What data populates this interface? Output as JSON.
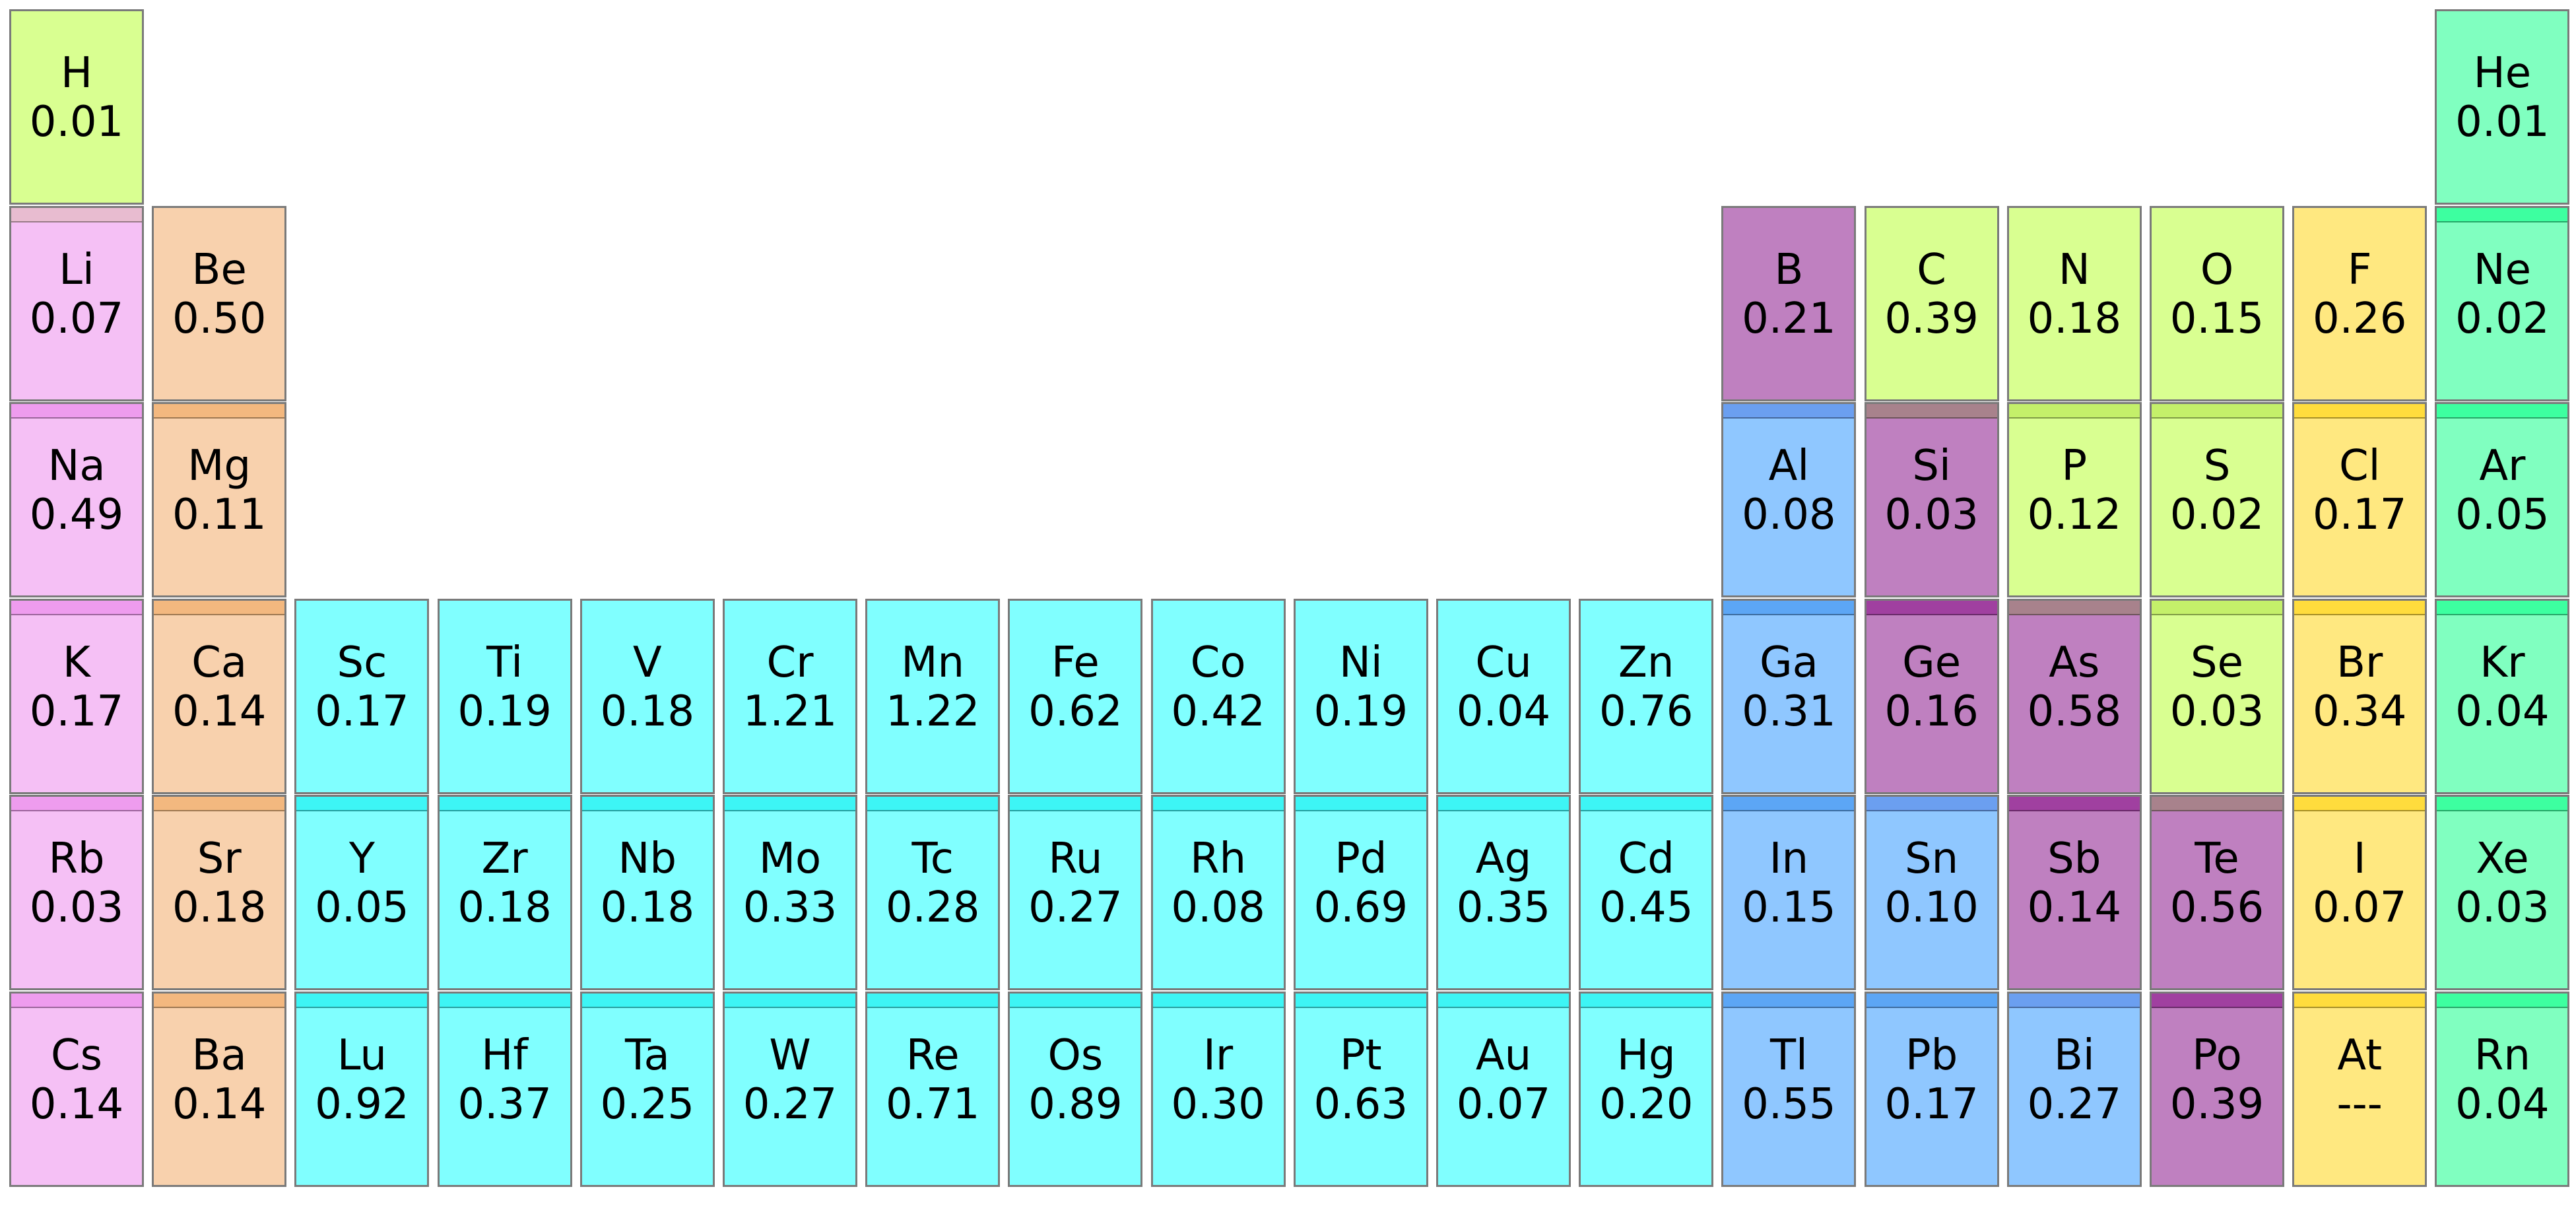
{
  "colors": {
    "alkali": "#f5c0f5",
    "alkaline_earth": "#f8d1ad",
    "transition": "#80ffff",
    "post_transition": "#8fc7ff",
    "metalloid": "#bf80c0",
    "nonmetal": "#d9ff91",
    "halogen": "#ffe880",
    "noble_gas": "#80ffc0"
  },
  "elements": [
    {
      "symbol": "H",
      "value": "0.01",
      "col": 1,
      "row": 1,
      "category": "nonmetal",
      "band": null
    },
    {
      "symbol": "He",
      "value": "0.01",
      "col": 18,
      "row": 1,
      "category": "noble_gas",
      "band": null
    },
    {
      "symbol": "Li",
      "value": "0.07",
      "col": 1,
      "row": 2,
      "category": "alkali",
      "band": "#e8bcd0"
    },
    {
      "symbol": "Be",
      "value": "0.50",
      "col": 2,
      "row": 2,
      "category": "alkaline_earth",
      "band": null
    },
    {
      "symbol": "B",
      "value": "0.21",
      "col": 13,
      "row": 2,
      "category": "metalloid",
      "band": null
    },
    {
      "symbol": "C",
      "value": "0.39",
      "col": 14,
      "row": 2,
      "category": "nonmetal",
      "band": null
    },
    {
      "symbol": "N",
      "value": "0.18",
      "col": 15,
      "row": 2,
      "category": "nonmetal",
      "band": null
    },
    {
      "symbol": "O",
      "value": "0.15",
      "col": 16,
      "row": 2,
      "category": "nonmetal",
      "band": null
    },
    {
      "symbol": "F",
      "value": "0.26",
      "col": 17,
      "row": 2,
      "category": "halogen",
      "band": null
    },
    {
      "symbol": "Ne",
      "value": "0.02",
      "col": 18,
      "row": 2,
      "category": "noble_gas",
      "band": "#3dffa0"
    },
    {
      "symbol": "Na",
      "value": "0.49",
      "col": 1,
      "row": 3,
      "category": "alkali",
      "band": "#ee9cee"
    },
    {
      "symbol": "Mg",
      "value": "0.11",
      "col": 2,
      "row": 3,
      "category": "alkaline_earth",
      "band": "#f3b87f"
    },
    {
      "symbol": "Al",
      "value": "0.08",
      "col": 13,
      "row": 3,
      "category": "post_transition",
      "band": "#6b9ff0"
    },
    {
      "symbol": "Si",
      "value": "0.03",
      "col": 14,
      "row": 3,
      "category": "metalloid",
      "band": "#a8828c"
    },
    {
      "symbol": "P",
      "value": "0.12",
      "col": 15,
      "row": 3,
      "category": "nonmetal",
      "band": "#c4f06a"
    },
    {
      "symbol": "S",
      "value": "0.02",
      "col": 16,
      "row": 3,
      "category": "nonmetal",
      "band": "#c4f06a"
    },
    {
      "symbol": "Cl",
      "value": "0.17",
      "col": 17,
      "row": 3,
      "category": "halogen",
      "band": "#ffdc3d"
    },
    {
      "symbol": "Ar",
      "value": "0.05",
      "col": 18,
      "row": 3,
      "category": "noble_gas",
      "band": "#3dffa0"
    },
    {
      "symbol": "K",
      "value": "0.17",
      "col": 1,
      "row": 4,
      "category": "alkali",
      "band": "#ee9cee"
    },
    {
      "symbol": "Ca",
      "value": "0.14",
      "col": 2,
      "row": 4,
      "category": "alkaline_earth",
      "band": "#f3b87f"
    },
    {
      "symbol": "Sc",
      "value": "0.17",
      "col": 3,
      "row": 4,
      "category": "transition",
      "band": null
    },
    {
      "symbol": "Ti",
      "value": "0.19",
      "col": 4,
      "row": 4,
      "category": "transition",
      "band": null
    },
    {
      "symbol": "V",
      "value": "0.18",
      "col": 5,
      "row": 4,
      "category": "transition",
      "band": null
    },
    {
      "symbol": "Cr",
      "value": "1.21",
      "col": 6,
      "row": 4,
      "category": "transition",
      "band": null
    },
    {
      "symbol": "Mn",
      "value": "1.22",
      "col": 7,
      "row": 4,
      "category": "transition",
      "band": null
    },
    {
      "symbol": "Fe",
      "value": "0.62",
      "col": 8,
      "row": 4,
      "category": "transition",
      "band": null
    },
    {
      "symbol": "Co",
      "value": "0.42",
      "col": 9,
      "row": 4,
      "category": "transition",
      "band": null
    },
    {
      "symbol": "Ni",
      "value": "0.19",
      "col": 10,
      "row": 4,
      "category": "transition",
      "band": null
    },
    {
      "symbol": "Cu",
      "value": "0.04",
      "col": 11,
      "row": 4,
      "category": "transition",
      "band": null
    },
    {
      "symbol": "Zn",
      "value": "0.76",
      "col": 12,
      "row": 4,
      "category": "transition",
      "band": null
    },
    {
      "symbol": "Ga",
      "value": "0.31",
      "col": 13,
      "row": 4,
      "category": "post_transition",
      "band": "#5ca6f5"
    },
    {
      "symbol": "Ge",
      "value": "0.16",
      "col": 14,
      "row": 4,
      "category": "metalloid",
      "band": "#a040a0"
    },
    {
      "symbol": "As",
      "value": "0.58",
      "col": 15,
      "row": 4,
      "category": "metalloid",
      "band": "#a8828c"
    },
    {
      "symbol": "Se",
      "value": "0.03",
      "col": 16,
      "row": 4,
      "category": "nonmetal",
      "band": "#c4f06a"
    },
    {
      "symbol": "Br",
      "value": "0.34",
      "col": 17,
      "row": 4,
      "category": "halogen",
      "band": "#ffdc3d"
    },
    {
      "symbol": "Kr",
      "value": "0.04",
      "col": 18,
      "row": 4,
      "category": "noble_gas",
      "band": "#3dffa0"
    },
    {
      "symbol": "Rb",
      "value": "0.03",
      "col": 1,
      "row": 5,
      "category": "alkali",
      "band": "#ee9cee"
    },
    {
      "symbol": "Sr",
      "value": "0.18",
      "col": 2,
      "row": 5,
      "category": "alkaline_earth",
      "band": "#f3b87f"
    },
    {
      "symbol": "Y",
      "value": "0.05",
      "col": 3,
      "row": 5,
      "category": "transition",
      "band": "#3df5f5"
    },
    {
      "symbol": "Zr",
      "value": "0.18",
      "col": 4,
      "row": 5,
      "category": "transition",
      "band": "#3df5f5"
    },
    {
      "symbol": "Nb",
      "value": "0.18",
      "col": 5,
      "row": 5,
      "category": "transition",
      "band": "#3df5f5"
    },
    {
      "symbol": "Mo",
      "value": "0.33",
      "col": 6,
      "row": 5,
      "category": "transition",
      "band": "#3df5f5"
    },
    {
      "symbol": "Tc",
      "value": "0.28",
      "col": 7,
      "row": 5,
      "category": "transition",
      "band": "#3df5f5"
    },
    {
      "symbol": "Ru",
      "value": "0.27",
      "col": 8,
      "row": 5,
      "category": "transition",
      "band": "#3df5f5"
    },
    {
      "symbol": "Rh",
      "value": "0.08",
      "col": 9,
      "row": 5,
      "category": "transition",
      "band": "#3df5f5"
    },
    {
      "symbol": "Pd",
      "value": "0.69",
      "col": 10,
      "row": 5,
      "category": "transition",
      "band": "#3df5f5"
    },
    {
      "symbol": "Ag",
      "value": "0.35",
      "col": 11,
      "row": 5,
      "category": "transition",
      "band": "#3df5f5"
    },
    {
      "symbol": "Cd",
      "value": "0.45",
      "col": 12,
      "row": 5,
      "category": "transition",
      "band": "#3df5f5"
    },
    {
      "symbol": "In",
      "value": "0.15",
      "col": 13,
      "row": 5,
      "category": "post_transition",
      "band": "#5ca6f5"
    },
    {
      "symbol": "Sn",
      "value": "0.10",
      "col": 14,
      "row": 5,
      "category": "post_transition",
      "band": "#6b9ff0"
    },
    {
      "symbol": "Sb",
      "value": "0.14",
      "col": 15,
      "row": 5,
      "category": "metalloid",
      "band": "#a040a0"
    },
    {
      "symbol": "Te",
      "value": "0.56",
      "col": 16,
      "row": 5,
      "category": "metalloid",
      "band": "#a8828c"
    },
    {
      "symbol": "I",
      "value": "0.07",
      "col": 17,
      "row": 5,
      "category": "halogen",
      "band": "#ffdc3d"
    },
    {
      "symbol": "Xe",
      "value": "0.03",
      "col": 18,
      "row": 5,
      "category": "noble_gas",
      "band": "#3dffa0"
    },
    {
      "symbol": "Cs",
      "value": "0.14",
      "col": 1,
      "row": 6,
      "category": "alkali",
      "band": "#ee9cee"
    },
    {
      "symbol": "Ba",
      "value": "0.14",
      "col": 2,
      "row": 6,
      "category": "alkaline_earth",
      "band": "#f3b87f"
    },
    {
      "symbol": "Lu",
      "value": "0.92",
      "col": 3,
      "row": 6,
      "category": "transition",
      "band": "#3df5f5"
    },
    {
      "symbol": "Hf",
      "value": "0.37",
      "col": 4,
      "row": 6,
      "category": "transition",
      "band": "#3df5f5"
    },
    {
      "symbol": "Ta",
      "value": "0.25",
      "col": 5,
      "row": 6,
      "category": "transition",
      "band": "#3df5f5"
    },
    {
      "symbol": "W",
      "value": "0.27",
      "col": 6,
      "row": 6,
      "category": "transition",
      "band": "#3df5f5"
    },
    {
      "symbol": "Re",
      "value": "0.71",
      "col": 7,
      "row": 6,
      "category": "transition",
      "band": "#3df5f5"
    },
    {
      "symbol": "Os",
      "value": "0.89",
      "col": 8,
      "row": 6,
      "category": "transition",
      "band": "#3df5f5"
    },
    {
      "symbol": "Ir",
      "value": "0.30",
      "col": 9,
      "row": 6,
      "category": "transition",
      "band": "#3df5f5"
    },
    {
      "symbol": "Pt",
      "value": "0.63",
      "col": 10,
      "row": 6,
      "category": "transition",
      "band": "#3df5f5"
    },
    {
      "symbol": "Au",
      "value": "0.07",
      "col": 11,
      "row": 6,
      "category": "transition",
      "band": "#3df5f5"
    },
    {
      "symbol": "Hg",
      "value": "0.20",
      "col": 12,
      "row": 6,
      "category": "transition",
      "band": "#3df5f5"
    },
    {
      "symbol": "Tl",
      "value": "0.55",
      "col": 13,
      "row": 6,
      "category": "post_transition",
      "band": "#5ca6f5"
    },
    {
      "symbol": "Pb",
      "value": "0.17",
      "col": 14,
      "row": 6,
      "category": "post_transition",
      "band": "#5ca6f5"
    },
    {
      "symbol": "Bi",
      "value": "0.27",
      "col": 15,
      "row": 6,
      "category": "post_transition",
      "band": "#6b9ff0"
    },
    {
      "symbol": "Po",
      "value": "0.39",
      "col": 16,
      "row": 6,
      "category": "metalloid",
      "band": "#a040a0"
    },
    {
      "symbol": "At",
      "value": "---",
      "col": 17,
      "row": 6,
      "category": "halogen",
      "band": "#ffdc3d"
    },
    {
      "symbol": "Rn",
      "value": "0.04",
      "col": 18,
      "row": 6,
      "category": "noble_gas",
      "band": "#3dffa0"
    }
  ]
}
